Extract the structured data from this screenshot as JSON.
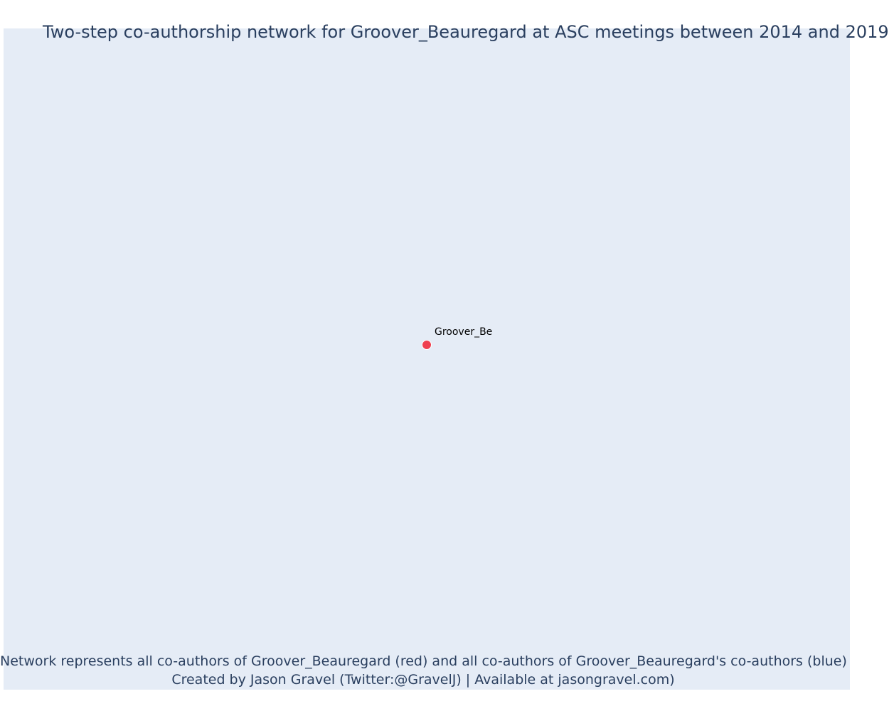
{
  "chart_data": {
    "type": "network",
    "title": "Two-step co-authorship network for Groover_Beauregard at ASC meetings between 2014 and 2019",
    "nodes": [
      {
        "id": "Groover_Beauregard",
        "label": "Groover_Be",
        "role": "focal",
        "color": "#ef4050",
        "x": 0,
        "y": 0
      }
    ],
    "edges": [],
    "xlim": [
      -1,
      1
    ],
    "ylim": [
      -1,
      1
    ],
    "grid": false,
    "background": "#e5ecf6",
    "annotations": [
      "Network represents all co-authors of Groover_Beauregard (red) and all co-authors of Groover_Beauregard's co-authors (blue)",
      "Created by Jason Gravel (Twitter:@GravelJ) | Available at jasongravel.com)"
    ]
  },
  "colors": {
    "focal_node": "#ef4050",
    "coauthor_node": "#636efa",
    "plot_background": "#e5ecf6",
    "text": "#2a3f5f"
  }
}
